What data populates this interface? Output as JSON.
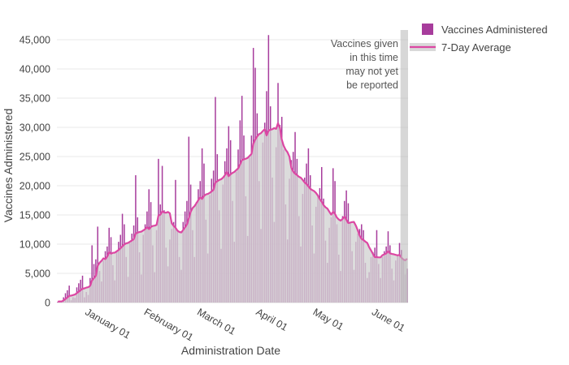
{
  "chart_data": {
    "type": "bar",
    "title": "",
    "xlabel": "Administration Date",
    "ylabel": "Vaccines Administered",
    "x_range": {
      "start": "Dec 18",
      "end": "Jun 20",
      "step": "1 day"
    },
    "ylim": [
      0,
      46800
    ],
    "grid": "horizontal",
    "legend_position": "top-right",
    "series": [
      {
        "name": "Vaccines Administered",
        "type": "bar"
      },
      {
        "name": "7-Day Average",
        "type": "line+area",
        "derived": "trailing 7-day mean of daily bars"
      }
    ],
    "y_ticks": [
      {
        "label": "0",
        "value": 0
      },
      {
        "label": "5,000",
        "value": 5000
      },
      {
        "label": "10,000",
        "value": 10000
      },
      {
        "label": "15,000",
        "value": 15000
      },
      {
        "label": "20,000",
        "value": 20000
      },
      {
        "label": "25,000",
        "value": 25000
      },
      {
        "label": "30,000",
        "value": 30000
      },
      {
        "label": "35,000",
        "value": 35000
      },
      {
        "label": "40,000",
        "value": 40000
      },
      {
        "label": "45,000",
        "value": 45000
      }
    ],
    "x_ticks": [
      {
        "label": "January 01",
        "day_index": 14
      },
      {
        "label": "February 01",
        "day_index": 45
      },
      {
        "label": "March 01",
        "day_index": 73
      },
      {
        "label": "April 01",
        "day_index": 104
      },
      {
        "label": "May 01",
        "day_index": 134
      },
      {
        "label": "June 01",
        "day_index": 165
      }
    ],
    "values": [
      150,
      250,
      150,
      900,
      1600,
      2100,
      2900,
      400,
      900,
      800,
      2600,
      3300,
      3900,
      4600,
      900,
      1800,
      1300,
      4200,
      9800,
      6600,
      7400,
      13000,
      5400,
      3600,
      7200,
      8800,
      9600,
      12800,
      11200,
      6400,
      3800,
      8800,
      10400,
      11600,
      15200,
      13400,
      7800,
      4400,
      10200,
      11800,
      13200,
      21800,
      14600,
      8600,
      4800,
      11600,
      13400,
      15600,
      19400,
      17200,
      9800,
      5200,
      12400,
      24600,
      16800,
      23400,
      15800,
      9400,
      6200,
      10800,
      12600,
      13800,
      21000,
      12400,
      7800,
      5600,
      13800,
      15600,
      17400,
      28400,
      20200,
      12400,
      7800,
      17200,
      19400,
      20800,
      26400,
      23800,
      14200,
      8400,
      18400,
      21200,
      22600,
      35200,
      25400,
      15800,
      9200,
      20200,
      24200,
      26400,
      30200,
      27800,
      17400,
      10400,
      22400,
      26200,
      31200,
      35400,
      28600,
      18200,
      11400,
      24800,
      28600,
      43600,
      40200,
      32400,
      20800,
      12600,
      27400,
      30800,
      36200,
      45800,
      33600,
      21400,
      13800,
      26600,
      37600,
      30400,
      31800,
      26200,
      16800,
      10800,
      21200,
      24400,
      25800,
      29200,
      24600,
      14800,
      9600,
      18600,
      21400,
      23800,
      26400,
      21800,
      13200,
      8400,
      16400,
      18200,
      19600,
      23200,
      17800,
      10600,
      6800,
      12800,
      14600,
      23000,
      20800,
      13400,
      8200,
      5400,
      14800,
      17400,
      19200,
      17000,
      13800,
      8800,
      5600,
      10400,
      11800,
      12600,
      13400,
      12400,
      6800,
      4200,
      5200,
      7800,
      8600,
      9400,
      12400,
      6600,
      4200,
      7800,
      8800,
      9600,
      12200,
      9800,
      5800,
      3800,
      7200,
      8200,
      10200,
      9000,
      7400,
      4800,
      5800
    ],
    "annotation": {
      "lines": [
        "Vaccines given",
        "in this time",
        "may not yet",
        "be reported"
      ]
    },
    "unreported_band": {
      "last_n_days": 4
    }
  },
  "legend": {
    "items": [
      {
        "label": "Vaccines Administered",
        "swatch": "square"
      },
      {
        "label": "7-Day Average",
        "swatch": "line"
      }
    ]
  },
  "colors": {
    "bar": "#A73C9C",
    "line": "#DC47A3",
    "area": "#D2D2D2",
    "band": "#BDBDBD",
    "grid": "#EDEDED",
    "zero_line": "#E2E2E2",
    "text": "#444444"
  }
}
